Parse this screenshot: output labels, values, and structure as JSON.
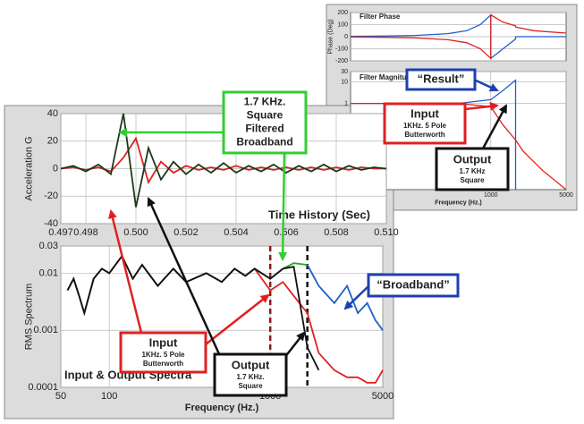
{
  "chart_data": [
    {
      "type": "line",
      "title": "Filter Phase",
      "y_label": "Phase (Deg)",
      "xlog": true,
      "grid": true,
      "x": [
        50,
        100,
        200,
        400,
        600,
        800,
        1000,
        1000,
        1300,
        1700,
        1700,
        2500,
        5000
      ],
      "series": [
        {
          "color": "#1f5fc8",
          "values": [
            2,
            5,
            10,
            25,
            50,
            100,
            180,
            -180,
            -100,
            -20,
            0,
            0,
            0
          ]
        },
        {
          "color": "#e02020",
          "values": [
            -2,
            -5,
            -10,
            -25,
            -50,
            -100,
            -180,
            180,
            120,
            90,
            80,
            50,
            30
          ]
        }
      ],
      "xlim": [
        50,
        5000
      ],
      "ylim": [
        -200,
        200
      ],
      "yticks": [
        -200,
        -100,
        0,
        100,
        200
      ]
    },
    {
      "type": "line",
      "title": "Filter Magnitude",
      "x_label": "Frequency (Hz.)",
      "xlog": true,
      "ylog": true,
      "grid": true,
      "x": [
        50,
        500,
        1000,
        1300,
        1700,
        1700,
        2000,
        3000,
        5000
      ],
      "series": [
        {
          "color": "#1f5fc8",
          "values": [
            1,
            1,
            1.5,
            4,
            12,
            0.0001,
            null,
            null,
            null
          ]
        },
        {
          "color": "#e02020",
          "values": [
            1,
            1,
            0.7,
            0.1,
            0.02,
            0.02,
            0.006,
            0.0008,
            0.0001
          ]
        }
      ],
      "xlim": [
        50,
        5000
      ],
      "xticks": [
        1000,
        5000
      ],
      "ylim": [
        0.0001,
        30
      ],
      "yticks": [
        1,
        10,
        30
      ]
    },
    {
      "type": "line",
      "title": "Time History (Sec)",
      "y_label": "Acceleration G",
      "grid": true,
      "x": [
        0.497,
        0.4975,
        0.498,
        0.4985,
        0.499,
        0.4995,
        0.5,
        0.5005,
        0.501,
        0.5015,
        0.502,
        0.5025,
        0.503,
        0.5035,
        0.504,
        0.5045,
        0.505,
        0.5055,
        0.506,
        0.5065,
        0.507,
        0.5075,
        0.508,
        0.5085,
        0.509,
        0.5095,
        0.51
      ],
      "series": [
        {
          "color": "#e02020",
          "values": [
            0,
            1,
            -1,
            1,
            -2,
            8,
            22,
            -10,
            5,
            -3,
            2,
            -1,
            1,
            -1,
            2,
            -1,
            1,
            -1,
            1,
            -1,
            1,
            -1,
            1,
            -1,
            1,
            0,
            0
          ]
        },
        {
          "color": "#1a3a1a",
          "values": [
            0,
            2,
            -2,
            3,
            -4,
            40,
            -28,
            15,
            -8,
            5,
            -4,
            3,
            -3,
            4,
            -3,
            2,
            -2,
            3,
            -3,
            2,
            -2,
            3,
            -2,
            2,
            -1,
            1,
            0
          ]
        }
      ],
      "xlim": [
        0.497,
        0.51
      ],
      "xticks": [
        0.497,
        0.498,
        {
          "value": 0.5,
          "label": "0.500"
        },
        0.502,
        0.504,
        0.506,
        0.508,
        {
          "value": 0.51,
          "label": "0.510"
        }
      ],
      "ylim": [
        -40,
        40
      ],
      "yticks": [
        -40,
        -20,
        0,
        20,
        40
      ]
    },
    {
      "type": "line",
      "title": "Input & Output Spectra",
      "x_label": "Frequency (Hz.)",
      "y_label": "RMS Spectrum",
      "xlog": true,
      "ylog": true,
      "grid": true,
      "x": [
        55,
        60,
        65,
        70,
        80,
        90,
        100,
        120,
        140,
        160,
        200,
        250,
        300,
        400,
        500,
        600,
        700,
        800,
        1000,
        1200,
        1400,
        1700,
        2000,
        2500,
        3000,
        3500,
        4000,
        4500,
        5000
      ],
      "series": [
        {
          "color": "#22aa22",
          "values": [
            0.005,
            0.008,
            0.004,
            0.002,
            0.008,
            0.012,
            0.01,
            0.02,
            0.008,
            0.014,
            0.006,
            0.012,
            0.007,
            0.01,
            0.007,
            0.012,
            0.009,
            0.012,
            0.008,
            0.012,
            0.015,
            0.014,
            null,
            null,
            null,
            null,
            null,
            null,
            null
          ]
        },
        {
          "color": "#1f5fc8",
          "values": [
            null,
            null,
            null,
            null,
            null,
            null,
            null,
            null,
            null,
            null,
            null,
            null,
            null,
            null,
            null,
            null,
            null,
            null,
            null,
            null,
            null,
            0.014,
            0.006,
            0.003,
            0.006,
            0.002,
            0.003,
            0.0015,
            0.001
          ]
        },
        {
          "color": "#e02020",
          "values": [
            0.005,
            0.008,
            0.004,
            0.002,
            0.008,
            0.012,
            0.01,
            0.02,
            0.008,
            0.014,
            0.006,
            0.012,
            0.007,
            0.01,
            0.007,
            0.012,
            0.009,
            0.012,
            0.005,
            0.007,
            0.004,
            0.002,
            0.0004,
            0.0002,
            0.00015,
            0.00015,
            0.00012,
            0.00012,
            0.0002
          ]
        },
        {
          "color": "#111111",
          "values": [
            0.005,
            0.008,
            0.004,
            0.002,
            0.008,
            0.012,
            0.01,
            0.02,
            0.008,
            0.014,
            0.006,
            0.012,
            0.007,
            0.01,
            0.007,
            0.012,
            0.009,
            0.012,
            0.008,
            0.012,
            0.013,
            0.0005,
            0.0002,
            null,
            null,
            null,
            null,
            null,
            null
          ]
        }
      ],
      "vlines": [
        {
          "x": 1000,
          "color": "#8b1a1a"
        },
        {
          "x": 1700,
          "color": "#111111"
        }
      ],
      "xlim": [
        50,
        5000
      ],
      "xticks": [
        50,
        100,
        1000,
        5000
      ],
      "ylim": [
        0.0001,
        0.03
      ],
      "yticks": [
        0.0001,
        0.001,
        0.01,
        0.03
      ]
    }
  ],
  "callouts": [
    {
      "color": "#33cc33",
      "lines": [
        "1.7 KHz.",
        "Square",
        "Filtered",
        "Broadband"
      ]
    },
    {
      "color": "#1f3fb0",
      "lines": [
        "“Result”"
      ]
    },
    {
      "color": "#e02020",
      "lines": [
        "Input",
        "1KHz. 5 Pole",
        "Butterworth"
      ]
    },
    {
      "color": "#111111",
      "lines": [
        "Output",
        "1.7 KHz",
        "Square"
      ]
    },
    {
      "color": "#1f3fb0",
      "lines": [
        "“Broadband”"
      ]
    },
    {
      "color": "#e02020",
      "lines": [
        "Input",
        "1KHz. 5 Pole",
        "Butterworth"
      ]
    },
    {
      "color": "#111111",
      "lines": [
        "Output",
        "1.7 KHz.",
        "Square"
      ]
    }
  ]
}
